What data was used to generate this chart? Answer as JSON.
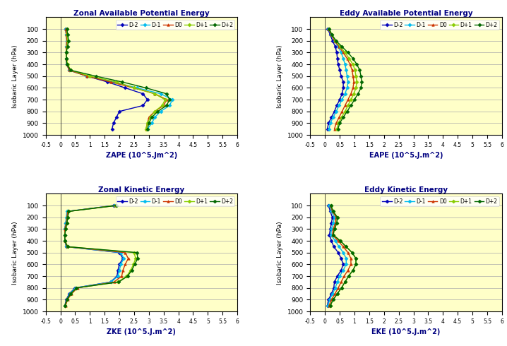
{
  "pressure_levels": [
    100,
    150,
    200,
    250,
    300,
    350,
    400,
    450,
    500,
    550,
    600,
    650,
    700,
    750,
    800,
    850,
    900,
    950
  ],
  "titles": [
    "Zonal Available Potential Energy",
    "Eddy Available Potential Energy",
    "Zonal Kinetic Energy",
    "Eddy Kinetic Energy"
  ],
  "xlabels": [
    "ZAPE (10^5.Jm^2)",
    "EAPE (10^5.J.m^2)",
    "ZKE (10^5.J.m^2)",
    "EKE (10^5.J.m^2)"
  ],
  "ylabel": "Isobaric Layer (hPa)",
  "legend_labels": [
    "D-2",
    "D-1",
    "D0",
    "D+1",
    "D+2"
  ],
  "colors": [
    "#0000BB",
    "#00BBEE",
    "#CC3300",
    "#88CC00",
    "#006600"
  ],
  "markers": [
    "D",
    "D",
    "^",
    "D",
    "D"
  ],
  "xlim": [
    -0.5,
    6
  ],
  "background_color": "#FFFFC8",
  "ZAPE": {
    "D-2": [
      0.18,
      0.2,
      0.22,
      0.2,
      0.2,
      0.2,
      0.22,
      0.3,
      0.9,
      1.6,
      2.2,
      2.8,
      2.95,
      2.8,
      2.0,
      1.9,
      1.8,
      1.75
    ],
    "D-1": [
      0.18,
      0.2,
      0.22,
      0.2,
      0.2,
      0.2,
      0.22,
      0.3,
      0.9,
      1.8,
      2.6,
      3.4,
      3.8,
      3.7,
      3.4,
      3.2,
      3.1,
      2.95
    ],
    "D0": [
      0.18,
      0.2,
      0.22,
      0.2,
      0.2,
      0.2,
      0.22,
      0.3,
      0.9,
      1.7,
      2.5,
      3.2,
      3.6,
      3.5,
      3.2,
      3.0,
      2.95,
      2.9
    ],
    "D+1": [
      0.22,
      0.22,
      0.25,
      0.22,
      0.2,
      0.2,
      0.25,
      0.35,
      1.0,
      1.9,
      2.5,
      3.2,
      3.55,
      3.45,
      3.2,
      3.05,
      2.95,
      2.9
    ],
    "D+2": [
      0.22,
      0.25,
      0.28,
      0.24,
      0.2,
      0.2,
      0.22,
      0.35,
      1.2,
      2.1,
      2.9,
      3.6,
      3.7,
      3.6,
      3.3,
      3.1,
      3.0,
      2.95
    ]
  },
  "EAPE": {
    "D-2": [
      0.1,
      0.18,
      0.26,
      0.35,
      0.4,
      0.42,
      0.45,
      0.5,
      0.55,
      0.62,
      0.62,
      0.58,
      0.5,
      0.4,
      0.32,
      0.22,
      0.12,
      0.08
    ],
    "D-1": [
      0.12,
      0.22,
      0.32,
      0.45,
      0.55,
      0.62,
      0.68,
      0.72,
      0.75,
      0.78,
      0.75,
      0.68,
      0.58,
      0.48,
      0.38,
      0.28,
      0.18,
      0.14
    ],
    "D0": [
      0.12,
      0.22,
      0.32,
      0.48,
      0.62,
      0.75,
      0.85,
      0.92,
      0.95,
      0.98,
      0.95,
      0.88,
      0.78,
      0.68,
      0.58,
      0.48,
      0.38,
      0.32
    ],
    "D+1": [
      0.14,
      0.24,
      0.35,
      0.52,
      0.68,
      0.82,
      0.95,
      1.02,
      1.05,
      1.08,
      1.05,
      0.98,
      0.88,
      0.78,
      0.68,
      0.56,
      0.46,
      0.4
    ],
    "D+2": [
      0.14,
      0.24,
      0.38,
      0.58,
      0.78,
      0.95,
      1.08,
      1.18,
      1.22,
      1.25,
      1.22,
      1.12,
      1.0,
      0.88,
      0.75,
      0.62,
      0.5,
      0.44
    ]
  },
  "ZKE": {
    "D-2": [
      1.8,
      0.25,
      0.22,
      0.18,
      0.15,
      0.15,
      0.15,
      0.2,
      2.0,
      2.12,
      2.0,
      1.95,
      1.92,
      1.7,
      0.5,
      0.3,
      0.2,
      0.15
    ],
    "D-1": [
      1.82,
      0.22,
      0.2,
      0.18,
      0.15,
      0.15,
      0.15,
      0.2,
      2.05,
      2.15,
      2.05,
      2.0,
      1.95,
      1.72,
      0.52,
      0.32,
      0.22,
      0.16
    ],
    "D0": [
      1.85,
      0.25,
      0.22,
      0.2,
      0.15,
      0.15,
      0.15,
      0.22,
      2.2,
      2.3,
      2.2,
      2.12,
      2.08,
      1.82,
      0.58,
      0.38,
      0.24,
      0.18
    ],
    "D+1": [
      1.88,
      0.28,
      0.25,
      0.22,
      0.18,
      0.15,
      0.15,
      0.25,
      2.5,
      2.55,
      2.48,
      2.38,
      2.25,
      1.95,
      0.55,
      0.35,
      0.22,
      0.16
    ],
    "D+2": [
      1.9,
      0.28,
      0.25,
      0.22,
      0.18,
      0.15,
      0.15,
      0.25,
      2.6,
      2.62,
      2.52,
      2.42,
      2.28,
      1.98,
      0.55,
      0.35,
      0.22,
      0.16
    ]
  },
  "EKE": {
    "D-2": [
      0.12,
      0.18,
      0.25,
      0.22,
      0.18,
      0.15,
      0.22,
      0.3,
      0.45,
      0.55,
      0.62,
      0.55,
      0.42,
      0.32,
      0.3,
      0.22,
      0.12,
      0.08
    ],
    "D-1": [
      0.15,
      0.22,
      0.32,
      0.28,
      0.22,
      0.2,
      0.35,
      0.48,
      0.62,
      0.72,
      0.72,
      0.62,
      0.5,
      0.42,
      0.35,
      0.26,
      0.16,
      0.1
    ],
    "D0": [
      0.18,
      0.25,
      0.38,
      0.35,
      0.28,
      0.25,
      0.45,
      0.62,
      0.78,
      0.88,
      0.88,
      0.78,
      0.65,
      0.55,
      0.45,
      0.34,
      0.22,
      0.14
    ],
    "D+1": [
      0.2,
      0.28,
      0.42,
      0.4,
      0.32,
      0.28,
      0.52,
      0.72,
      0.92,
      1.05,
      1.05,
      0.95,
      0.8,
      0.68,
      0.56,
      0.42,
      0.28,
      0.18
    ],
    "D+2": [
      0.2,
      0.28,
      0.42,
      0.4,
      0.32,
      0.28,
      0.52,
      0.72,
      0.92,
      1.05,
      1.05,
      0.95,
      0.8,
      0.68,
      0.56,
      0.42,
      0.28,
      0.18
    ]
  }
}
